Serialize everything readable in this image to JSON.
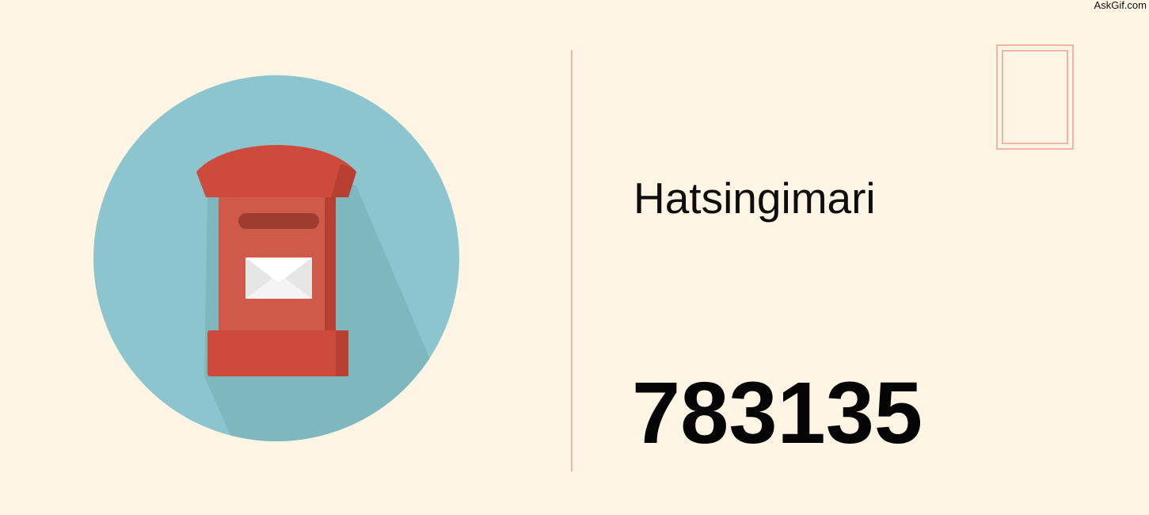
{
  "watermark": "AskGif.com",
  "place_name": "Hatsingimari",
  "pincode": "783135",
  "icons": {
    "illustration": "post-box-icon",
    "envelope": "envelope-icon",
    "stamp": "stamp-frame-icon"
  },
  "colors": {
    "background": "#fef5e5",
    "circle": "#8cc5cd",
    "postbox_red": "#cd4a3d",
    "divider": "#f0b7a2",
    "stamp_border": "#f3b5a5"
  }
}
